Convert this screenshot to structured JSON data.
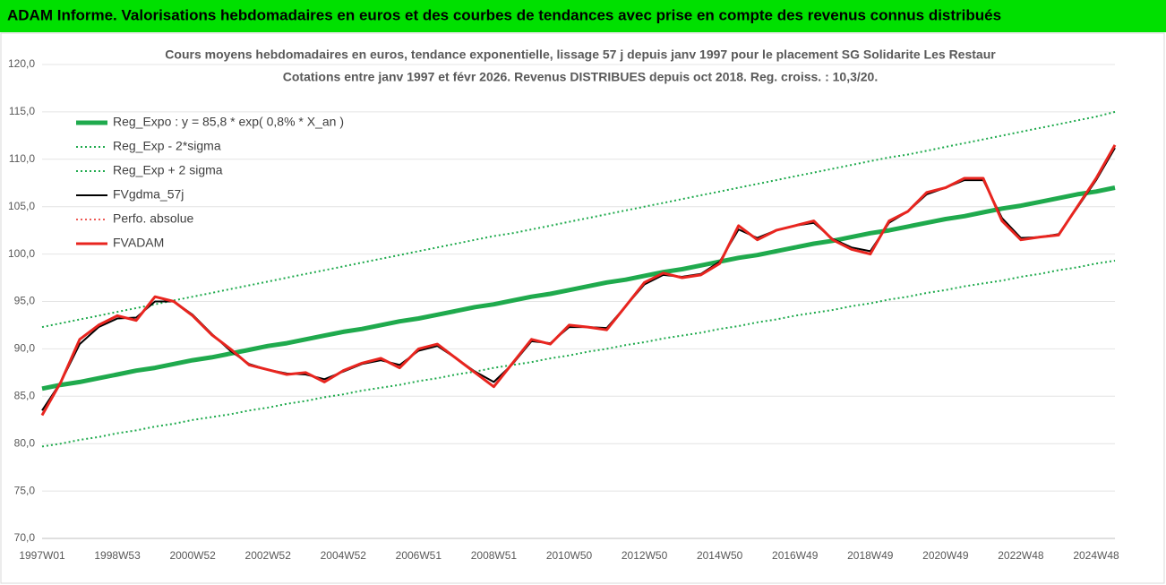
{
  "header": {
    "title": "ADAM Informe. Valorisations hebdomadaires en euros et des courbes de tendances avec prise en compte des revenus connus distribués"
  },
  "chart_data": {
    "type": "line",
    "title": "Cours moyens hebdomadaires en euros, tendance exponentielle, lissage 57 j depuis janv 1997 pour le placement SG Solidarite Les Restaur",
    "subtitle": "Cotations entre janv 1997 et févr 2026. Revenus DISTRIBUES depuis oct 2018. Reg. croiss. : 10,3/20.",
    "categories": [
      "1997W01",
      null,
      null,
      null,
      "1998W53",
      null,
      null,
      null,
      "2000W52",
      null,
      null,
      null,
      "2002W52",
      null,
      null,
      null,
      "2004W52",
      null,
      null,
      null,
      "2006W51",
      null,
      null,
      null,
      "2008W51",
      null,
      null,
      null,
      "2010W50",
      null,
      null,
      null,
      "2012W50",
      null,
      null,
      null,
      "2014W50",
      null,
      null,
      null,
      "2016W49",
      null,
      null,
      null,
      "2018W49",
      null,
      null,
      null,
      "2020W49",
      null,
      null,
      null,
      "2022W48",
      null,
      null,
      null,
      "2024W48",
      null
    ],
    "ylim": [
      70,
      120
    ],
    "yticks": [
      {
        "value": 70,
        "label": "70,0"
      },
      {
        "value": 75,
        "label": "75,0"
      },
      {
        "value": 80,
        "label": "80,0"
      },
      {
        "value": 85,
        "label": "85,0"
      },
      {
        "value": 90,
        "label": "90,0"
      },
      {
        "value": 95,
        "label": "95,0"
      },
      {
        "value": 100,
        "label": "100,0"
      },
      {
        "value": 105,
        "label": "105,0"
      },
      {
        "value": 110,
        "label": "110,0"
      },
      {
        "value": 115,
        "label": "115,0"
      },
      {
        "value": 120,
        "label": "120,0"
      }
    ],
    "grid": true,
    "legend": "top-left",
    "series": [
      {
        "name": "Reg_Expo : y = 85,8 * exp( 0,8% *  X_an )",
        "color": "#1faa4d",
        "style": "solid",
        "width": 5,
        "values": [
          85.8,
          86.2,
          86.5,
          86.9,
          87.3,
          87.7,
          88.0,
          88.4,
          88.8,
          89.1,
          89.5,
          89.9,
          90.3,
          90.6,
          91.0,
          91.4,
          91.8,
          92.1,
          92.5,
          92.9,
          93.2,
          93.6,
          94.0,
          94.4,
          94.7,
          95.1,
          95.5,
          95.8,
          96.2,
          96.6,
          97.0,
          97.3,
          97.7,
          98.1,
          98.4,
          98.8,
          99.2,
          99.6,
          99.9,
          100.3,
          100.7,
          101.1,
          101.4,
          101.8,
          102.2,
          102.5,
          102.9,
          103.3,
          103.7,
          104.0,
          104.4,
          104.8,
          105.1,
          105.5,
          105.9,
          106.3,
          106.6,
          107.0
        ]
      },
      {
        "name": "Reg_Exp - 2*sigma",
        "color": "#1faa4d",
        "style": "dotted",
        "width": 2,
        "values": [
          79.7,
          80.0,
          80.4,
          80.7,
          81.1,
          81.4,
          81.8,
          82.1,
          82.5,
          82.8,
          83.1,
          83.5,
          83.8,
          84.2,
          84.5,
          84.9,
          85.2,
          85.6,
          85.9,
          86.2,
          86.6,
          86.9,
          87.3,
          87.6,
          88.0,
          88.3,
          88.6,
          89.0,
          89.3,
          89.7,
          90.0,
          90.4,
          90.7,
          91.1,
          91.4,
          91.7,
          92.1,
          92.4,
          92.8,
          93.1,
          93.5,
          93.8,
          94.1,
          94.5,
          94.8,
          95.2,
          95.5,
          95.9,
          96.2,
          96.6,
          96.9,
          97.2,
          97.6,
          97.9,
          98.3,
          98.6,
          99.0,
          99.3
        ]
      },
      {
        "name": "Reg_Exp + 2 sigma",
        "color": "#1faa4d",
        "style": "dotted",
        "width": 2,
        "values": [
          92.3,
          92.7,
          93.1,
          93.5,
          93.9,
          94.3,
          94.7,
          95.1,
          95.5,
          95.9,
          96.3,
          96.7,
          97.1,
          97.5,
          97.9,
          98.3,
          98.7,
          99.1,
          99.5,
          99.9,
          100.3,
          100.7,
          101.1,
          101.5,
          101.9,
          102.2,
          102.6,
          103.0,
          103.4,
          103.8,
          104.2,
          104.6,
          105.0,
          105.4,
          105.8,
          106.2,
          106.6,
          107.0,
          107.4,
          107.8,
          108.2,
          108.6,
          109.0,
          109.4,
          109.8,
          110.2,
          110.5,
          110.9,
          111.3,
          111.7,
          112.1,
          112.5,
          112.9,
          113.3,
          113.7,
          114.1,
          114.5,
          115.0
        ]
      },
      {
        "name": "FVgdma_57j",
        "color": "#000000",
        "style": "solid",
        "width": 2,
        "values": [
          83.5,
          86.5,
          90.5,
          92.3,
          93.2,
          93.3,
          95.0,
          95.0,
          93.6,
          91.6,
          89.8,
          88.4,
          87.8,
          87.4,
          87.3,
          86.8,
          87.6,
          88.4,
          88.8,
          88.3,
          89.8,
          90.3,
          89.0,
          87.6,
          86.5,
          88.4,
          90.8,
          90.6,
          92.3,
          92.3,
          92.2,
          94.5,
          96.8,
          97.8,
          97.6,
          97.9,
          99.2,
          102.6,
          101.7,
          102.5,
          103.0,
          103.3,
          101.6,
          100.7,
          100.3,
          103.3,
          104.5,
          106.3,
          107.0,
          107.8,
          107.8,
          103.8,
          101.7,
          101.8,
          102.1,
          104.9,
          107.8,
          111.2
        ]
      },
      {
        "name": "Perfo. absolue",
        "color": "#e8251f",
        "style": "dotted",
        "width": 1.5,
        "values": [
          83.0,
          86.5,
          91.0,
          92.5,
          93.5,
          93.0,
          95.5,
          95.0,
          93.5,
          91.5,
          90.0,
          88.3,
          87.8,
          87.3,
          87.5,
          86.5,
          87.7,
          88.5,
          89.0,
          88.0,
          90.0,
          90.5,
          89.0,
          87.5,
          86.0,
          88.5,
          91.0,
          90.5,
          92.5,
          92.3,
          92.0,
          94.5,
          97.0,
          98.0,
          97.5,
          97.8,
          99.0,
          103.0,
          101.5,
          102.5,
          103.0,
          103.5,
          101.5,
          100.5,
          100.0,
          103.5,
          104.5,
          106.5,
          107.0,
          108.0,
          108.0,
          103.5,
          101.5,
          101.8,
          102.0,
          105.0,
          108.0,
          111.5
        ]
      },
      {
        "name": "FVADAM",
        "color": "#e8251f",
        "style": "solid",
        "width": 3,
        "values": [
          83.0,
          86.5,
          91.0,
          92.5,
          93.5,
          93.0,
          95.5,
          95.0,
          93.5,
          91.5,
          90.0,
          88.3,
          87.8,
          87.3,
          87.5,
          86.5,
          87.7,
          88.5,
          89.0,
          88.0,
          90.0,
          90.5,
          89.0,
          87.5,
          86.0,
          88.5,
          91.0,
          90.5,
          92.5,
          92.3,
          92.0,
          94.5,
          97.0,
          98.0,
          97.5,
          97.8,
          99.0,
          103.0,
          101.5,
          102.5,
          103.0,
          103.5,
          101.5,
          100.5,
          100.0,
          103.5,
          104.5,
          106.5,
          107.0,
          108.0,
          108.0,
          103.5,
          101.5,
          101.8,
          102.0,
          105.0,
          108.0,
          111.5
        ]
      }
    ]
  }
}
